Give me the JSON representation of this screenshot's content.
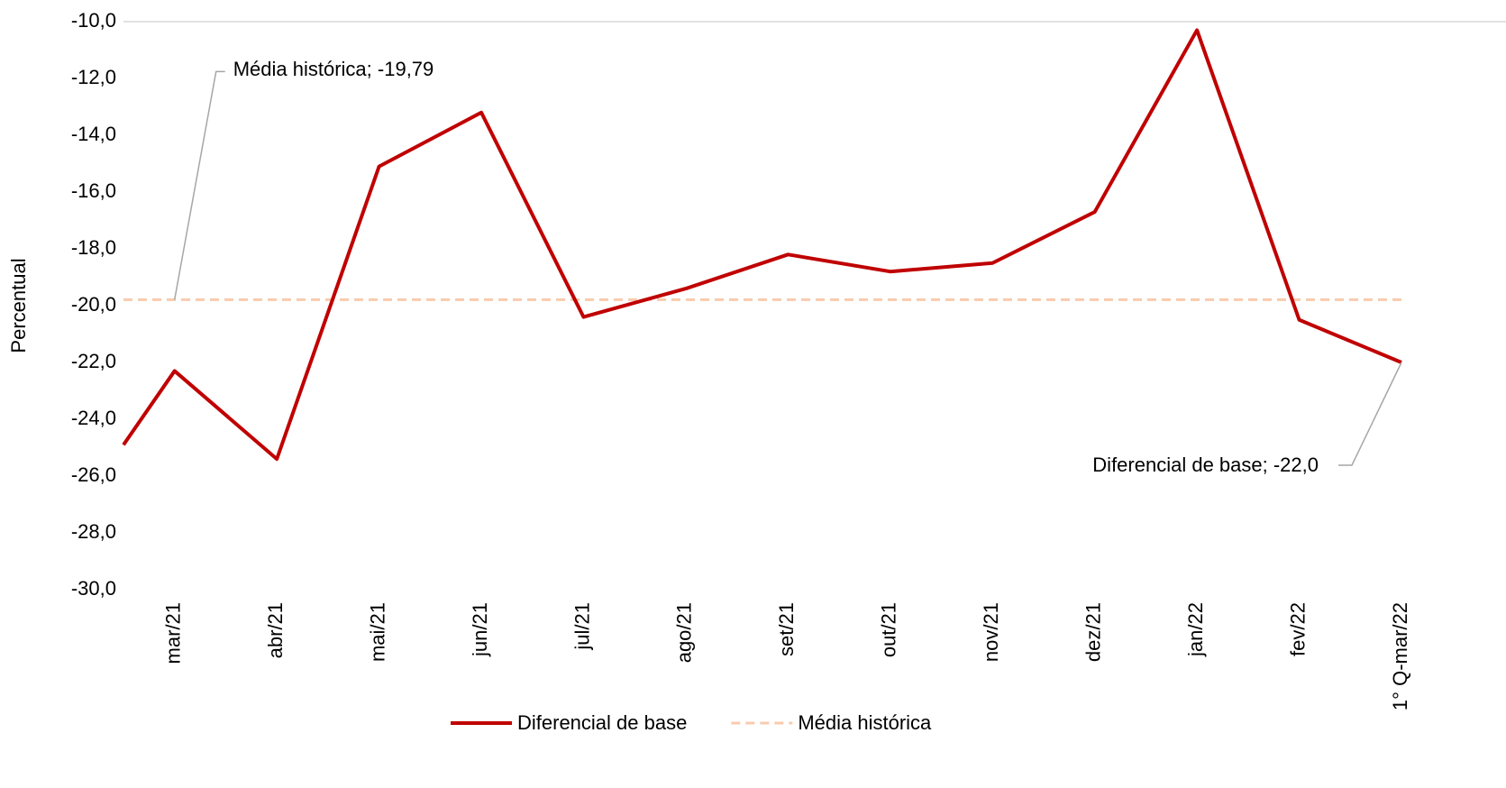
{
  "chart_data": {
    "type": "line",
    "y_label": "Percentual",
    "categories": [
      null,
      "mar/21",
      "abr/21",
      "mai/21",
      "jun/21",
      "jul/21",
      "ago/21",
      "set/21",
      "out/21",
      "nov/21",
      "dez/21",
      "jan/22",
      "fev/22",
      "1° Q-mar/22"
    ],
    "series": [
      {
        "name": "Diferencial de base",
        "color": "#c00000",
        "dashed": false,
        "values": [
          -24.9,
          -22.3,
          -25.4,
          -15.1,
          -13.2,
          -20.4,
          -19.4,
          -18.2,
          -18.8,
          -18.5,
          -16.7,
          -10.3,
          -20.5,
          -22.0
        ],
        "value_labels": [
          null,
          null,
          null,
          null,
          null,
          null,
          null,
          null,
          null,
          null,
          null,
          null,
          null,
          "Diferencial de base; -22,0"
        ]
      },
      {
        "name": "Média histórica",
        "color": "#f8cbad",
        "dashed": true,
        "values": [
          -19.79,
          -19.79,
          -19.79,
          -19.79,
          -19.79,
          -19.79,
          -19.79,
          -19.79,
          -19.79,
          -19.79,
          -19.79,
          -19.79,
          -19.79,
          -19.79
        ],
        "value_labels": [
          null,
          "Média histórica; -19,79",
          null,
          null,
          null,
          null,
          null,
          null,
          null,
          null,
          null,
          null,
          null,
          null
        ]
      }
    ],
    "ylim": [
      -30,
      -10
    ],
    "yticks": [
      {
        "value": -30,
        "label": "-30,0"
      },
      {
        "value": -28,
        "label": "-28,0"
      },
      {
        "value": -26,
        "label": "-26,0"
      },
      {
        "value": -24,
        "label": "-24,0"
      },
      {
        "value": -22,
        "label": "-22,0"
      },
      {
        "value": -20,
        "label": "-20,0"
      },
      {
        "value": -18,
        "label": "-18,0"
      },
      {
        "value": -16,
        "label": "-16,0"
      },
      {
        "value": -14,
        "label": "-14,0"
      },
      {
        "value": -12,
        "label": "-12,0"
      },
      {
        "value": -10,
        "label": "-10,0"
      }
    ],
    "grid": false
  }
}
